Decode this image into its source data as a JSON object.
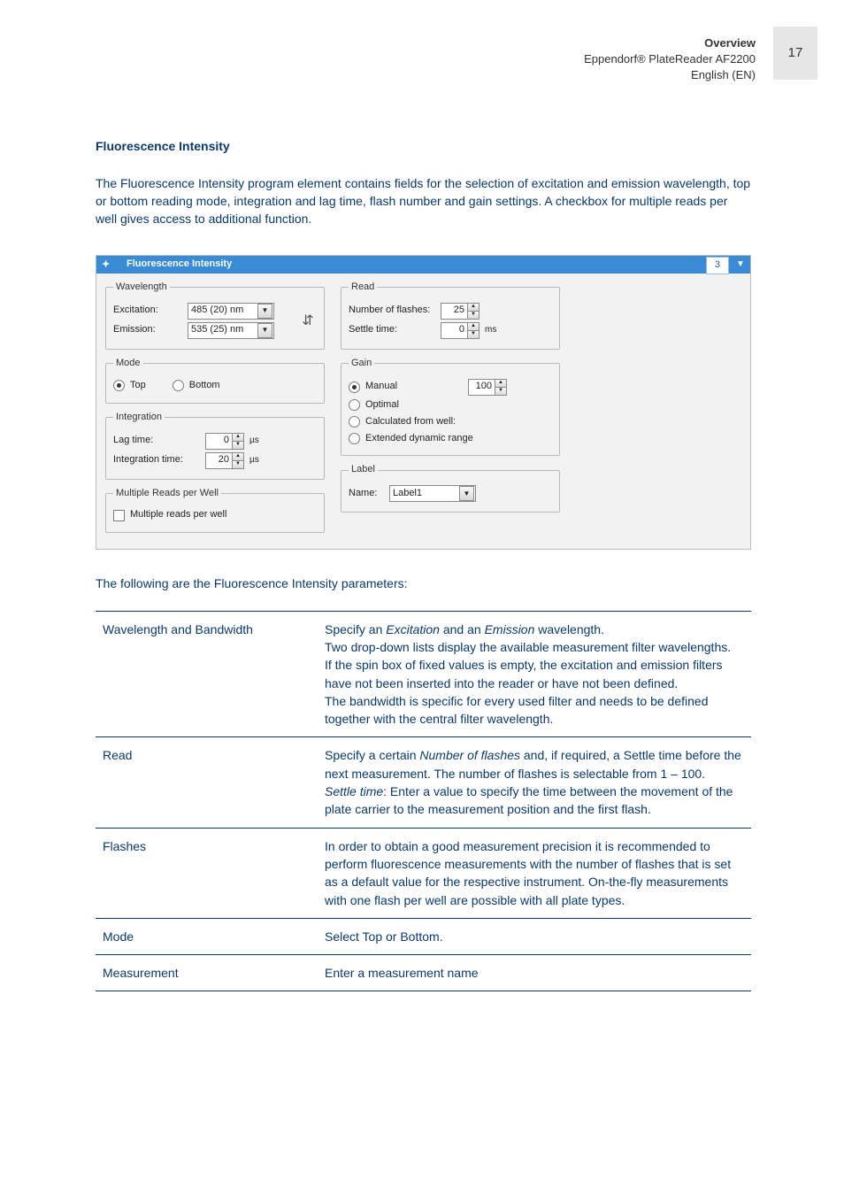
{
  "header": {
    "overview": "Overview",
    "product": "Eppendorf® PlateReader AF2200",
    "lang": "English (EN)",
    "page_number": "17"
  },
  "section_title": "Fluorescence Intensity",
  "intro": "The Fluorescence Intensity program element contains fields for the selection of excitation and emission wavelength, top or bottom reading mode, integration and lag time, flash number and gain settings. A checkbox for multiple reads per well gives access to additional function.",
  "dlg": {
    "title": "Fluorescence Intensity",
    "title_number": "3",
    "wavelength": {
      "legend": "Wavelength",
      "excitation_label": "Excitation:",
      "excitation_value": "485 (20) nm",
      "emission_label": "Emission:",
      "emission_value": "535 (25) nm"
    },
    "mode": {
      "legend": "Mode",
      "top": "Top",
      "bottom": "Bottom"
    },
    "integration": {
      "legend": "Integration",
      "lag_label": "Lag time:",
      "lag_value": "0",
      "lag_unit": "µs",
      "int_label": "Integration time:",
      "int_value": "20",
      "int_unit": "µs"
    },
    "multiple": {
      "legend": "Multiple Reads per Well",
      "label": "Multiple reads per well"
    },
    "read": {
      "legend": "Read",
      "flashes_label": "Number of flashes:",
      "flashes_value": "25",
      "settle_label": "Settle time:",
      "settle_value": "0",
      "settle_unit": "ms"
    },
    "gain": {
      "legend": "Gain",
      "manual": "Manual",
      "manual_value": "100",
      "optimal": "Optimal",
      "calc": "Calculated from well:",
      "ext": "Extended dynamic range"
    },
    "label": {
      "legend": "Label",
      "name_label": "Name:",
      "name_value": "Label1"
    }
  },
  "after": "The following are the Fluorescence Intensity parameters:",
  "table": [
    {
      "name": "Wavelength and Bandwidth",
      "desc": "Specify an <em>Excitation</em> and an <em>Emission</em> wavelength.<br>Two drop-down lists display the available measurement filter wavelengths.<br>If the spin box of fixed values is empty, the excitation and emission filters have not been inserted into the reader or have not been defined.<br>The bandwidth is specific for every used filter and needs to be defined together with the central filter wavelength."
    },
    {
      "name": "Read",
      "desc": "Specify a certain <em>Number of flashes</em> and, if required, a Settle time before the next measurement. The number of flashes is selectable from 1 – 100.<br><em>Settle time</em>: Enter a value to specify the time between the movement of the plate carrier to the measurement position and the first flash."
    },
    {
      "name": "Flashes",
      "desc": "In order to obtain a good measurement precision it is recommended to perform fluorescence measurements with the number of flashes that is set as a default value for the respective instrument. On-the-fly measurements with one flash per well are possible with all plate types."
    },
    {
      "name": "Mode",
      "desc": "Select Top or Bottom."
    },
    {
      "name": "Measurement",
      "desc": "Enter a measurement name"
    }
  ]
}
